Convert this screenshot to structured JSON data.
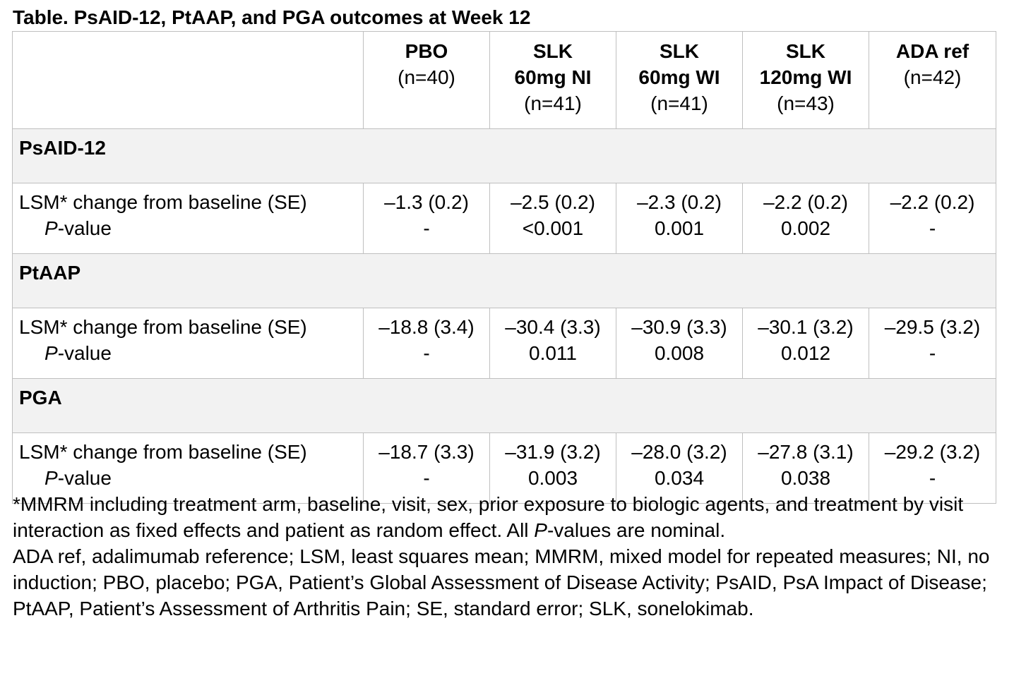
{
  "title": "Table. PsAID-12, PtAAP, and PGA outcomes at Week 12",
  "columns": [
    {
      "name_lines": [
        "PBO"
      ],
      "n": "(n=40)"
    },
    {
      "name_lines": [
        "SLK",
        "60mg NI"
      ],
      "n": "(n=41)"
    },
    {
      "name_lines": [
        "SLK",
        "60mg WI"
      ],
      "n": "(n=41)"
    },
    {
      "name_lines": [
        "SLK",
        "120mg WI"
      ],
      "n": "(n=43)"
    },
    {
      "name_lines": [
        "ADA ref"
      ],
      "n": "(n=42)"
    }
  ],
  "row_label": "LSM* change from baseline (SE)",
  "pvalue_label_italic": "P",
  "pvalue_label_rest": "-value",
  "sections": [
    {
      "name": "PsAID-12",
      "lsm": [
        "–1.3 (0.2)",
        "–2.5 (0.2)",
        "–2.3 (0.2)",
        "–2.2 (0.2)",
        "–2.2 (0.2)"
      ],
      "pvalues": [
        "-",
        "<0.001",
        "0.001",
        "0.002",
        "-"
      ]
    },
    {
      "name": "PtAAP",
      "lsm": [
        "–18.8 (3.4)",
        "–30.4 (3.3)",
        "–30.9 (3.3)",
        "–30.1 (3.2)",
        "–29.5 (3.2)"
      ],
      "pvalues": [
        "-",
        "0.011",
        "0.008",
        "0.012",
        "-"
      ]
    },
    {
      "name": "PGA",
      "lsm": [
        "–18.7 (3.3)",
        "–31.9 (3.2)",
        "–28.0 (3.2)",
        "–27.8 (3.1)",
        "–29.2 (3.2)"
      ],
      "pvalues": [
        "-",
        "0.003",
        "0.034",
        "0.038",
        "-"
      ]
    }
  ],
  "footnote1": {
    "part1": "*MMRM including treatment arm, baseline, visit, sex, prior exposure to biologic agents, and treatment by visit interaction as fixed effects and patient as random effect. All ",
    "italic": "P",
    "part2": "-values are nominal."
  },
  "footnote2": "ADA ref, adalimumab reference; LSM, least squares mean; MMRM, mixed model for repeated measures; NI, no induction; PBO, placebo; PGA, Patient’s Global Assessment of Disease Activity; PsAID, PsA Impact of Disease; PtAAP, Patient’s Assessment of Arthritis Pain; SE, standard error; SLK, sonelokimab."
}
